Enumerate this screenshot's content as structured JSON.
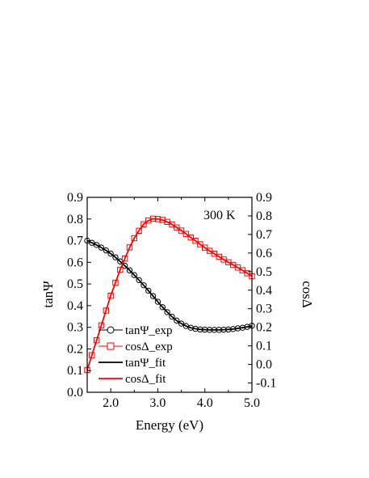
{
  "chart_data": {
    "type": "line",
    "annotation": "300 K",
    "xlabel": "Energy (eV)",
    "ylabel_left": "tanΨ",
    "ylabel_right": "cosΔ",
    "xlim": [
      1.5,
      5.0
    ],
    "ylim_left": [
      0.0,
      0.9
    ],
    "ylim_right": [
      -0.15,
      0.9
    ],
    "x_ticks": [
      2.0,
      3.0,
      4.0,
      5.0
    ],
    "x_tick_labels": [
      "2.0",
      "3.0",
      "4.0",
      "5.0"
    ],
    "y_left_ticks": [
      0.0,
      0.1,
      0.2,
      0.3,
      0.4,
      0.5,
      0.6,
      0.7,
      0.8,
      0.9
    ],
    "y_left_tick_labels": [
      "0.0",
      "0.1",
      "0.2",
      "0.3",
      "0.4",
      "0.5",
      "0.6",
      "0.7",
      "0.8",
      "0.9"
    ],
    "y_right_ticks": [
      -0.1,
      0.0,
      0.1,
      0.2,
      0.3,
      0.4,
      0.5,
      0.6,
      0.7,
      0.8,
      0.9
    ],
    "y_right_tick_labels": [
      "-0.1",
      "0.0",
      "0.1",
      "0.2",
      "0.3",
      "0.4",
      "0.5",
      "0.6",
      "0.7",
      "0.8",
      "0.9"
    ],
    "grid": false,
    "legend_position": "lower-left",
    "series": [
      {
        "name": "tanΨ_exp",
        "axis": "left",
        "style": "markers",
        "marker": "circle",
        "color": "#000000",
        "x": [
          1.5,
          1.6,
          1.7,
          1.8,
          1.9,
          2.0,
          2.1,
          2.2,
          2.3,
          2.4,
          2.5,
          2.6,
          2.7,
          2.8,
          2.9,
          3.0,
          3.1,
          3.2,
          3.3,
          3.4,
          3.5,
          3.6,
          3.7,
          3.8,
          3.9,
          4.0,
          4.1,
          4.2,
          4.3,
          4.4,
          4.5,
          4.6,
          4.7,
          4.8,
          4.9,
          5.0
        ],
        "y": [
          0.7,
          0.69,
          0.68,
          0.668,
          0.655,
          0.64,
          0.623,
          0.604,
          0.584,
          0.563,
          0.541,
          0.518,
          0.494,
          0.469,
          0.444,
          0.418,
          0.393,
          0.37,
          0.349,
          0.331,
          0.317,
          0.306,
          0.298,
          0.293,
          0.29,
          0.289,
          0.288,
          0.288,
          0.288,
          0.289,
          0.29,
          0.292,
          0.295,
          0.298,
          0.302,
          0.307
        ]
      },
      {
        "name": "cosΔ_exp",
        "axis": "right",
        "style": "markers",
        "marker": "square",
        "color": "#ff0000",
        "x": [
          1.5,
          1.6,
          1.7,
          1.8,
          1.9,
          2.0,
          2.1,
          2.2,
          2.3,
          2.4,
          2.5,
          2.6,
          2.7,
          2.8,
          2.9,
          3.0,
          3.1,
          3.2,
          3.3,
          3.4,
          3.5,
          3.6,
          3.7,
          3.8,
          3.9,
          4.0,
          4.1,
          4.2,
          4.3,
          4.4,
          4.5,
          4.6,
          4.7,
          4.8,
          4.9,
          5.0
        ],
        "y": [
          -0.03,
          0.05,
          0.13,
          0.21,
          0.29,
          0.37,
          0.44,
          0.51,
          0.57,
          0.63,
          0.68,
          0.72,
          0.755,
          0.775,
          0.785,
          0.783,
          0.778,
          0.768,
          0.754,
          0.738,
          0.721,
          0.703,
          0.684,
          0.666,
          0.647,
          0.629,
          0.612,
          0.596,
          0.58,
          0.565,
          0.55,
          0.536,
          0.522,
          0.507,
          0.491,
          0.475
        ]
      },
      {
        "name": "tanΨ_fit",
        "axis": "left",
        "style": "line",
        "color": "#000000",
        "x": [
          1.5,
          1.6,
          1.7,
          1.8,
          1.9,
          2.0,
          2.1,
          2.2,
          2.3,
          2.4,
          2.5,
          2.6,
          2.7,
          2.8,
          2.9,
          3.0,
          3.1,
          3.2,
          3.3,
          3.4,
          3.5,
          3.6,
          3.7,
          3.8,
          3.9,
          4.0,
          4.1,
          4.2,
          4.3,
          4.4,
          4.5,
          4.6,
          4.7,
          4.8,
          4.9,
          5.0
        ],
        "y": [
          0.7,
          0.69,
          0.68,
          0.668,
          0.655,
          0.64,
          0.623,
          0.604,
          0.584,
          0.563,
          0.541,
          0.518,
          0.494,
          0.469,
          0.444,
          0.418,
          0.393,
          0.37,
          0.349,
          0.331,
          0.317,
          0.306,
          0.298,
          0.293,
          0.29,
          0.289,
          0.288,
          0.288,
          0.288,
          0.289,
          0.29,
          0.292,
          0.295,
          0.298,
          0.302,
          0.307
        ]
      },
      {
        "name": "cosΔ_fit",
        "axis": "right",
        "style": "line",
        "color": "#ff0000",
        "x": [
          1.5,
          1.6,
          1.7,
          1.8,
          1.9,
          2.0,
          2.1,
          2.2,
          2.3,
          2.4,
          2.5,
          2.6,
          2.7,
          2.8,
          2.9,
          3.0,
          3.1,
          3.2,
          3.3,
          3.4,
          3.5,
          3.6,
          3.7,
          3.8,
          3.9,
          4.0,
          4.1,
          4.2,
          4.3,
          4.4,
          4.5,
          4.6,
          4.7,
          4.8,
          4.9,
          5.0
        ],
        "y": [
          -0.03,
          0.05,
          0.13,
          0.21,
          0.29,
          0.37,
          0.44,
          0.51,
          0.57,
          0.63,
          0.68,
          0.72,
          0.755,
          0.775,
          0.785,
          0.783,
          0.778,
          0.768,
          0.754,
          0.738,
          0.721,
          0.703,
          0.684,
          0.666,
          0.647,
          0.629,
          0.612,
          0.596,
          0.58,
          0.565,
          0.55,
          0.536,
          0.522,
          0.507,
          0.491,
          0.475
        ]
      }
    ]
  }
}
